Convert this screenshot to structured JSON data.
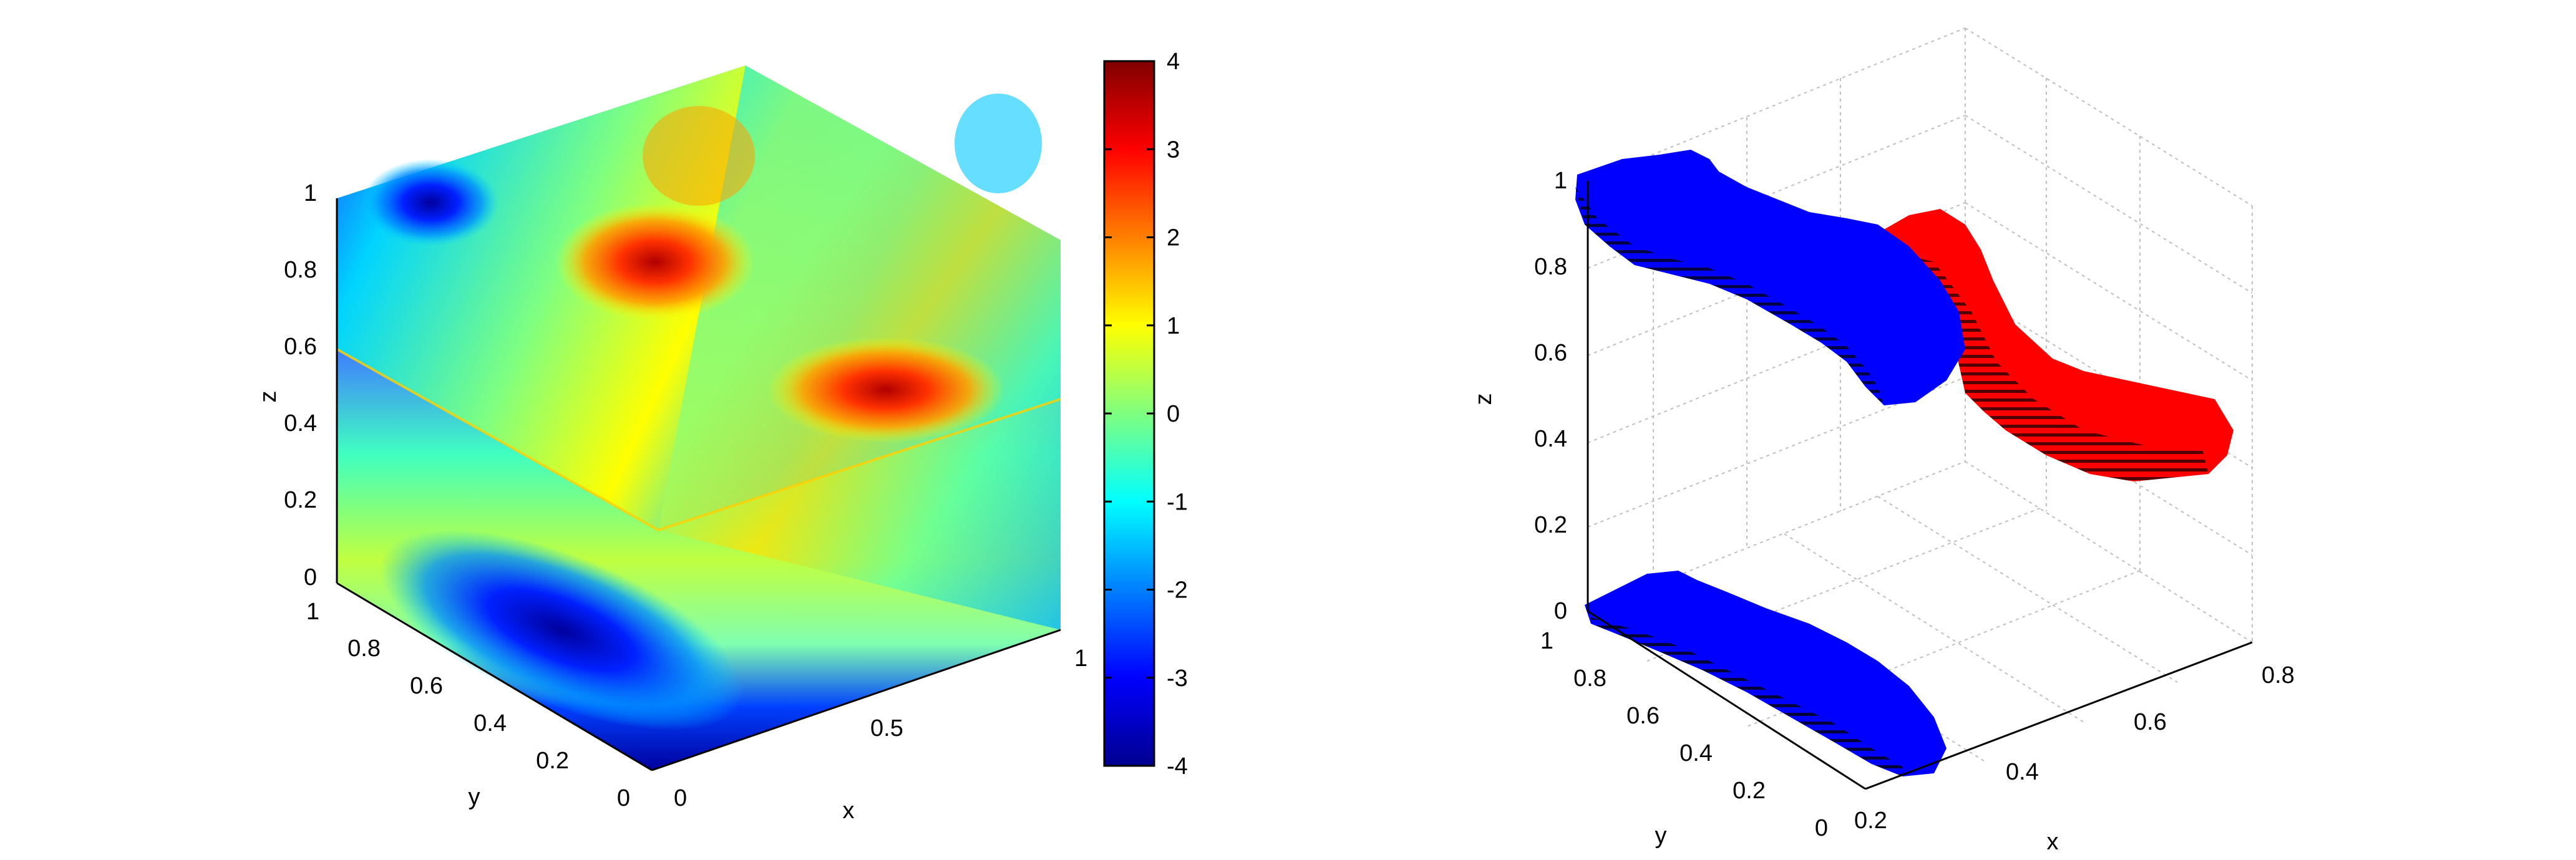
{
  "chart_data": [
    {
      "type": "heatmap",
      "subtype": "3d-slice-plot",
      "title": "",
      "xlabel": "x",
      "ylabel": "y",
      "zlabel": "z",
      "xlim": [
        0,
        1
      ],
      "ylim": [
        0,
        1
      ],
      "zlim": [
        0,
        1
      ],
      "x_ticks": [
        "0",
        "0.5",
        "1"
      ],
      "y_ticks": [
        "0",
        "0.2",
        "0.4",
        "0.6",
        "0.8",
        "1"
      ],
      "z_ticks": [
        "0",
        "0.2",
        "0.4",
        "0.6",
        "0.8",
        "1"
      ],
      "colormap": "jet",
      "colorbar": {
        "range": [
          -4,
          4
        ],
        "ticks": [
          "4",
          "3",
          "2",
          "1",
          "0",
          "-1",
          "-2",
          "-3",
          "-4"
        ],
        "placement": "right"
      },
      "slices": [
        "x = 1 plane",
        "y = 1 plane",
        "z = 0 plane",
        "z = 0.5 plane"
      ],
      "grid": false
    },
    {
      "type": "scatter",
      "subtype": "3d-isosurface-voxels",
      "title": "",
      "xlabel": "x",
      "ylabel": "y",
      "zlabel": "z",
      "x_ticks": [
        "0.2",
        "0.4",
        "0.6",
        "0.8"
      ],
      "y_ticks": [
        "0",
        "0.2",
        "0.4",
        "0.6",
        "0.8",
        "1"
      ],
      "z_ticks": [
        "0",
        "0.2",
        "0.4",
        "0.6",
        "0.8",
        "1"
      ],
      "grid": true,
      "colors": {
        "negative_region": "#0000ff",
        "positive_region": "#ff0000"
      }
    }
  ]
}
